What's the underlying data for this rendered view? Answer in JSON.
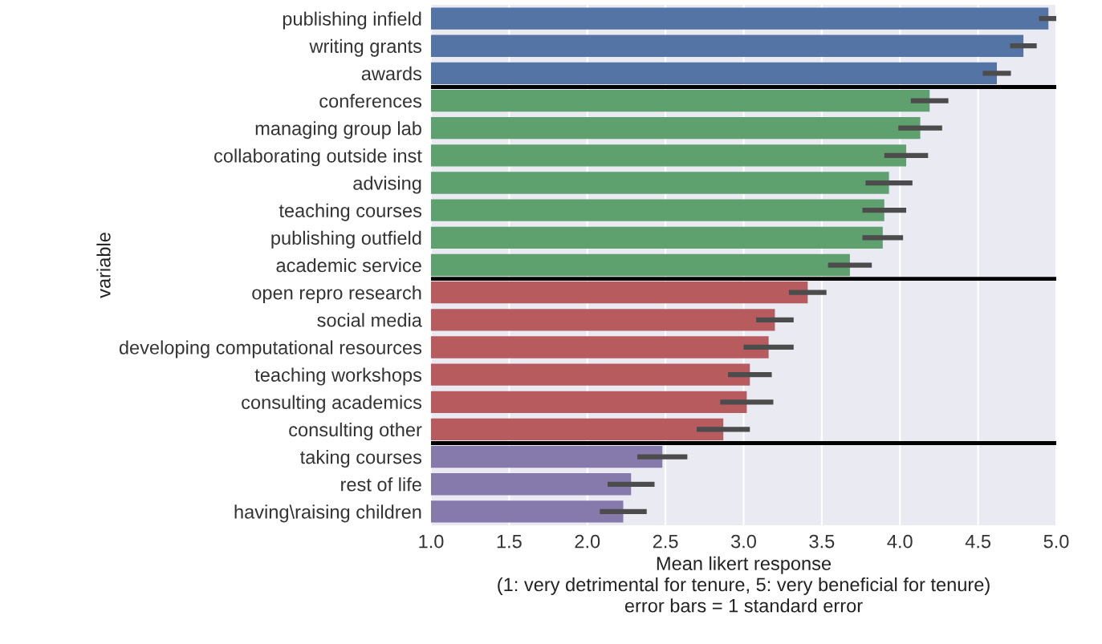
{
  "chart_data": {
    "type": "bar",
    "orientation": "horizontal",
    "categories": [
      "publishing infield",
      "writing grants",
      "awards",
      "conferences",
      "managing group lab",
      "collaborating outside inst",
      "advising",
      "teaching courses",
      "publishing outfield",
      "academic service",
      "open repro research",
      "social media",
      "developing computational resources",
      "teaching workshops",
      "consulting academics",
      "consulting other",
      "taking courses",
      "rest of life",
      "having\\raising children"
    ],
    "values": [
      4.95,
      4.79,
      4.62,
      4.19,
      4.13,
      4.04,
      3.93,
      3.9,
      3.89,
      3.68,
      3.41,
      3.2,
      3.16,
      3.04,
      3.02,
      2.87,
      2.48,
      2.28,
      2.23
    ],
    "errors": [
      0.06,
      0.085,
      0.09,
      0.12,
      0.14,
      0.14,
      0.15,
      0.14,
      0.13,
      0.14,
      0.12,
      0.12,
      0.16,
      0.14,
      0.17,
      0.17,
      0.16,
      0.15,
      0.15
    ],
    "colors": [
      "#5574a6",
      "#5574a6",
      "#5574a6",
      "#5ea06e",
      "#5ea06e",
      "#5ea06e",
      "#5ea06e",
      "#5ea06e",
      "#5ea06e",
      "#5ea06e",
      "#b75b5f",
      "#b75b5f",
      "#b75b5f",
      "#b75b5f",
      "#b75b5f",
      "#b75b5f",
      "#8679ab",
      "#8679ab",
      "#8679ab"
    ],
    "xlim": [
      1.0,
      5.0
    ],
    "xticks": [
      {
        "value": 1.0,
        "label": "1.0"
      },
      {
        "value": 1.5,
        "label": "1.5"
      },
      {
        "value": 2.0,
        "label": "2.0"
      },
      {
        "value": 2.5,
        "label": "2.5"
      },
      {
        "value": 3.0,
        "label": "3.0"
      },
      {
        "value": 3.5,
        "label": "3.5"
      },
      {
        "value": 4.0,
        "label": "4.0"
      },
      {
        "value": 4.5,
        "label": "4.5"
      },
      {
        "value": 5.0,
        "label": "5.0"
      }
    ],
    "xlabel": "Mean likert response\n(1: very detrimental for tenure, 5: very beneficial for tenure)\nerror bars = 1 standard error",
    "ylabel": "variable",
    "grid": "x",
    "legend": false
  }
}
